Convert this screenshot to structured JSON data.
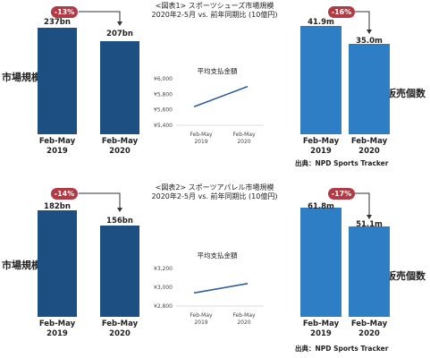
{
  "colors": {
    "dark_bar": "#1d4f82",
    "light_bar": "#2e7ec6",
    "badge": "#b13a44",
    "line": "#2f5f97"
  },
  "section1": {
    "header_line1": "<図表1> スポーツシューズ市場規模",
    "header_line2": "2020年2-5月 vs. 前年同期比 (10億円)",
    "left_side_label": "市場規模",
    "right_side_label": "販売個数",
    "source": "出典：NPD Sports Tracker"
  },
  "section2": {
    "header_line1": "<図表2> スポーツアパレル市場規模",
    "header_line2": "2020年2-5月 vs. 前年同期比 (10億円)",
    "left_side_label": "市場規模",
    "right_side_label": "販売個数",
    "source": "出典：NPD Sports Tracker"
  },
  "chart_data": [
    {
      "type": "bar",
      "categories": [
        "Feb-May 2019",
        "Feb-May 2020"
      ],
      "values": [
        237,
        207
      ],
      "value_labels": [
        "237bn",
        "207bn"
      ],
      "change_label": "-13%",
      "ylim": [
        0,
        250
      ]
    },
    {
      "type": "line",
      "title": "平均支払金額",
      "categories": [
        "Feb-May 2019",
        "Feb-May 2020"
      ],
      "values": [
        5640,
        5900
      ],
      "yticks": [
        "¥6,000",
        "¥5,800",
        "¥5,600",
        "¥5,400"
      ],
      "ylim": [
        5400,
        6000
      ]
    },
    {
      "type": "bar",
      "categories": [
        "Feb-May 2019",
        "Feb-May 2020"
      ],
      "values": [
        41.9,
        35.0
      ],
      "value_labels": [
        "41.9m",
        "35.0m"
      ],
      "change_label": "-16%",
      "ylim": [
        0,
        44
      ]
    },
    {
      "type": "bar",
      "categories": [
        "Feb-May 2019",
        "Feb-May 2020"
      ],
      "values": [
        182,
        156
      ],
      "value_labels": [
        "182bn",
        "156bn"
      ],
      "change_label": "-14%",
      "ylim": [
        0,
        192
      ]
    },
    {
      "type": "line",
      "title": "平均支払金額",
      "categories": [
        "Feb-May 2019",
        "Feb-May 2020"
      ],
      "values": [
        2940,
        3040
      ],
      "yticks": [
        "¥3,200",
        "¥3,000",
        "¥2,800"
      ],
      "ylim": [
        2800,
        3200
      ]
    },
    {
      "type": "bar",
      "categories": [
        "Feb-May 2019",
        "Feb-May 2020"
      ],
      "values": [
        61.8,
        51.1
      ],
      "value_labels": [
        "61.8m",
        "51.1m"
      ],
      "change_label": "-17%",
      "ylim": [
        0,
        65
      ]
    }
  ]
}
